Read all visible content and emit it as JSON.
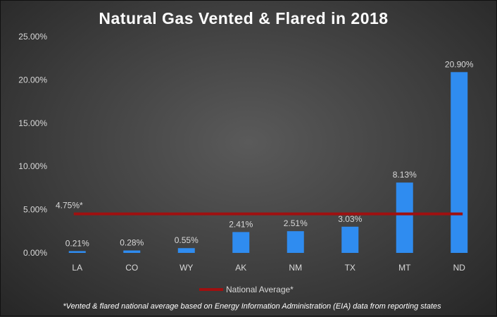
{
  "chart_data": {
    "type": "bar",
    "title": "Natural Gas Vented & Flared in 2018",
    "categories": [
      "LA",
      "CO",
      "WY",
      "AK",
      "NM",
      "TX",
      "MT",
      "ND"
    ],
    "values": [
      0.21,
      0.28,
      0.55,
      2.41,
      2.51,
      3.03,
      8.13,
      20.9
    ],
    "data_labels": [
      "0.21%",
      "0.28%",
      "0.55%",
      "2.41%",
      "2.51%",
      "3.03%",
      "8.13%",
      "20.90%"
    ],
    "ylim": [
      0,
      25
    ],
    "y_ticks": [
      0,
      5,
      10,
      15,
      20,
      25
    ],
    "y_tick_labels": [
      "0.00%",
      "5.00%",
      "10.00%",
      "15.00%",
      "20.00%",
      "25.00%"
    ],
    "reference_line": {
      "name": "National Average*",
      "value": 4.75,
      "label": "4.75%*",
      "color": "#a01010"
    },
    "bar_color": "#2f8cf0",
    "grid": false,
    "legend_position": "bottom",
    "footnote": "*Vented & flared national average based on Energy Information Administration (EIA) data from reporting states"
  }
}
